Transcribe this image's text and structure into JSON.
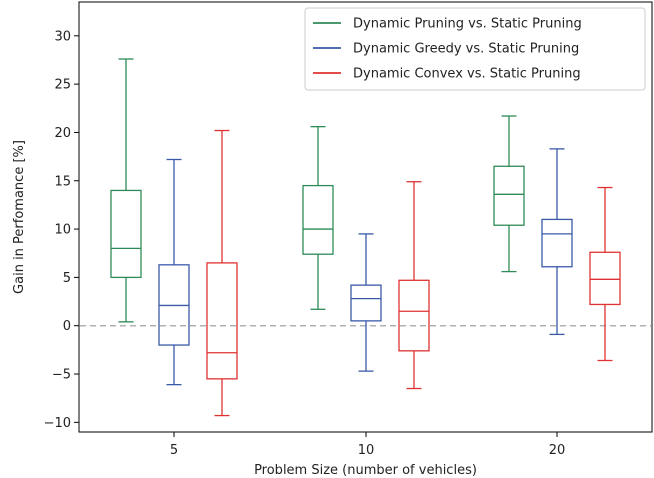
{
  "chart_data": {
    "type": "box",
    "title": "",
    "xlabel": "Problem Size (number of vehicles)",
    "ylabel": "Gain in Perfomance [%]",
    "categories": [
      "5",
      "10",
      "20"
    ],
    "ylim": [
      -11,
      33.5
    ],
    "yticks": [
      -10,
      -5,
      0,
      5,
      10,
      15,
      20,
      25,
      30
    ],
    "ytick_labels": [
      "−10",
      "−5",
      "0",
      "5",
      "10",
      "15",
      "20",
      "25",
      "30"
    ],
    "reference_line": {
      "y": 0,
      "style": "dashed",
      "color": "#b0b0b0"
    },
    "legend_position": "top-right",
    "grid": false,
    "series": [
      {
        "name": "Dynamic Pruning vs. Static Pruning",
        "color": "#2e8b57",
        "boxes": [
          {
            "whisker_low": 0.4,
            "q1": 5.0,
            "median": 8.0,
            "q3": 14.0,
            "whisker_high": 27.6
          },
          {
            "whisker_low": 1.7,
            "q1": 7.4,
            "median": 10.0,
            "q3": 14.5,
            "whisker_high": 20.6
          },
          {
            "whisker_low": 5.6,
            "q1": 10.4,
            "median": 13.6,
            "q3": 16.5,
            "whisker_high": 21.7
          }
        ]
      },
      {
        "name": "Dynamic Greedy vs. Static Pruning",
        "color": "#3a5aa8",
        "boxes": [
          {
            "whisker_low": -6.1,
            "q1": -2.0,
            "median": 2.1,
            "q3": 6.3,
            "whisker_high": 17.2
          },
          {
            "whisker_low": -4.7,
            "q1": 0.5,
            "median": 2.8,
            "q3": 4.2,
            "whisker_high": 9.5
          },
          {
            "whisker_low": -0.9,
            "q1": 6.1,
            "median": 9.5,
            "q3": 11.0,
            "whisker_high": 18.3
          }
        ]
      },
      {
        "name": "Dynamic Convex vs. Static Pruning",
        "color": "#e03232",
        "boxes": [
          {
            "whisker_low": -9.3,
            "q1": -5.5,
            "median": -2.8,
            "q3": 6.5,
            "whisker_high": 20.2
          },
          {
            "whisker_low": -6.5,
            "q1": -2.6,
            "median": 1.5,
            "q3": 4.7,
            "whisker_high": 14.9
          },
          {
            "whisker_low": -3.6,
            "q1": 2.2,
            "median": 4.8,
            "q3": 7.6,
            "whisker_high": 14.3
          }
        ]
      }
    ]
  }
}
